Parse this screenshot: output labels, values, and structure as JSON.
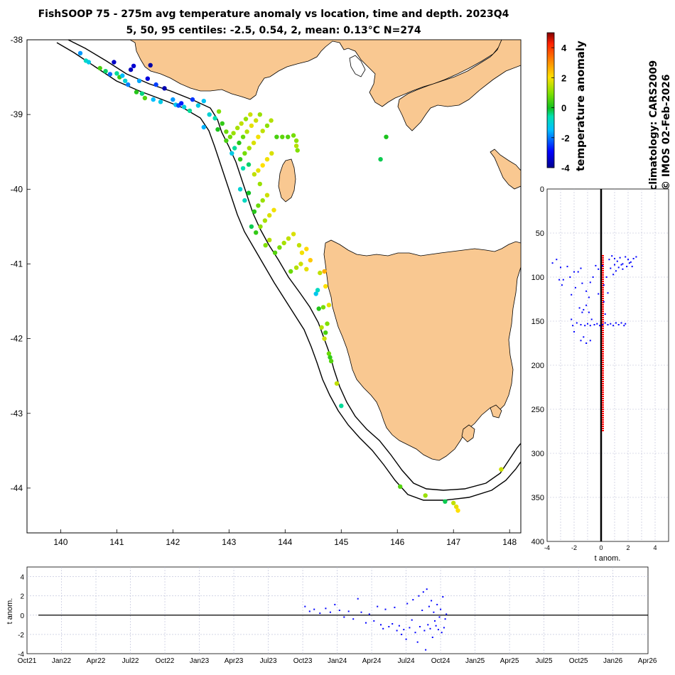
{
  "title_line1": "FishSOOP 75 - 275m avg temperature anomaly vs location, time and depth. 2023Q4",
  "title_line2": "5, 50, 95 centiles: -2.5, 0.54, 2, mean: 0.13°C N=274",
  "side_text_1": "climatology: CARS2009",
  "side_text_2": "© IMOS 02-Feb-2026",
  "colors": {
    "land": "#f9c891",
    "points_blue": "#0000ff",
    "red_line": "#ff0000",
    "grid": "#b8bcd6"
  },
  "chart_data": [
    {
      "type": "scatter",
      "name": "map",
      "xlabel": "longitude",
      "ylabel": "latitude",
      "xlim": [
        139.4,
        148.2
      ],
      "ylim": [
        -44.6,
        -38
      ],
      "xticks": [
        "140",
        "141",
        "142",
        "143",
        "144",
        "145",
        "146",
        "147",
        "148"
      ],
      "yticks": [
        "-38",
        "-39",
        "-40",
        "-41",
        "-42",
        "-43",
        "-44"
      ],
      "colorbar": {
        "label": "temperature anomaly",
        "range": [
          -4,
          5
        ],
        "ticks": [
          "-4",
          "-2",
          "0",
          "2",
          "4"
        ]
      },
      "points": [
        [
          140.35,
          -38.18,
          -1.8
        ],
        [
          140.45,
          -38.28,
          -0.8
        ],
        [
          140.5,
          -38.3,
          -1.2
        ],
        [
          140.7,
          -38.38,
          0.5
        ],
        [
          140.8,
          -38.42,
          -0.3
        ],
        [
          140.88,
          -38.46,
          -2.2
        ],
        [
          140.95,
          -38.3,
          -3.5
        ],
        [
          141.0,
          -38.45,
          -0.5
        ],
        [
          141.05,
          -38.5,
          0.3
        ],
        [
          141.1,
          -38.48,
          -1.5
        ],
        [
          141.15,
          -38.55,
          -1.0
        ],
        [
          141.2,
          -38.6,
          -2.0
        ],
        [
          141.25,
          -38.4,
          -3.6
        ],
        [
          141.3,
          -38.35,
          -3.4
        ],
        [
          141.35,
          -38.7,
          0.2
        ],
        [
          141.4,
          -38.55,
          -1.7
        ],
        [
          141.45,
          -38.72,
          -0.4
        ],
        [
          141.5,
          -38.78,
          0.6
        ],
        [
          141.55,
          -38.52,
          -3.3
        ],
        [
          141.6,
          -38.34,
          -3.8
        ],
        [
          141.65,
          -38.8,
          -1.5
        ],
        [
          141.7,
          -38.6,
          -2.5
        ],
        [
          141.78,
          -38.83,
          -1.2
        ],
        [
          141.85,
          -38.65,
          -3.7
        ],
        [
          142.0,
          -38.8,
          -1.8
        ],
        [
          142.05,
          -38.87,
          -1.3
        ],
        [
          142.1,
          -38.88,
          -2.4
        ],
        [
          142.15,
          -38.85,
          -2.8
        ],
        [
          142.2,
          -38.9,
          -1.1
        ],
        [
          142.3,
          -38.95,
          -0.5
        ],
        [
          142.35,
          -38.8,
          -2.6
        ],
        [
          142.45,
          -38.88,
          -1.2
        ],
        [
          142.55,
          -38.82,
          -1.4
        ],
        [
          142.55,
          -39.17,
          -1.6
        ],
        [
          142.65,
          -39.0,
          -1.0
        ],
        [
          142.75,
          -39.05,
          -0.6
        ],
        [
          142.8,
          -39.2,
          0.1
        ],
        [
          142.88,
          -39.12,
          0.3
        ],
        [
          142.95,
          -39.23,
          0.8
        ],
        [
          142.82,
          -38.96,
          1.0
        ],
        [
          142.95,
          -39.35,
          0.5
        ],
        [
          143.02,
          -39.3,
          0.9
        ],
        [
          143.08,
          -39.25,
          1.2
        ],
        [
          143.15,
          -39.18,
          1.3
        ],
        [
          143.22,
          -39.12,
          1.5
        ],
        [
          143.3,
          -39.06,
          1.2
        ],
        [
          143.38,
          -39.0,
          1.6
        ],
        [
          143.05,
          -39.52,
          -1.2
        ],
        [
          143.1,
          -39.45,
          -0.5
        ],
        [
          143.18,
          -39.38,
          0.2
        ],
        [
          143.25,
          -39.3,
          0.8
        ],
        [
          143.32,
          -39.23,
          1.4
        ],
        [
          143.4,
          -39.15,
          1.8
        ],
        [
          143.48,
          -39.08,
          1.6
        ],
        [
          143.55,
          -39.0,
          1.2
        ],
        [
          143.2,
          -39.6,
          0.3
        ],
        [
          143.28,
          -39.52,
          0.9
        ],
        [
          143.36,
          -39.45,
          1.3
        ],
        [
          143.44,
          -39.38,
          1.7
        ],
        [
          143.52,
          -39.3,
          1.9
        ],
        [
          143.6,
          -39.22,
          1.5
        ],
        [
          143.68,
          -39.15,
          1.1
        ],
        [
          143.75,
          -39.08,
          1.4
        ],
        [
          143.85,
          -39.3,
          0.5
        ],
        [
          143.95,
          -39.3,
          0.7
        ],
        [
          144.05,
          -39.3,
          0.6
        ],
        [
          144.15,
          -39.28,
          0.9
        ],
        [
          144.2,
          -39.35,
          1.1
        ],
        [
          144.2,
          -39.42,
          1.4
        ],
        [
          144.22,
          -39.48,
          1.0
        ],
        [
          143.25,
          -39.72,
          -0.6
        ],
        [
          143.35,
          -39.67,
          -0.3
        ],
        [
          143.45,
          -39.8,
          1.5
        ],
        [
          143.52,
          -39.75,
          1.8
        ],
        [
          143.6,
          -39.68,
          2.0
        ],
        [
          143.68,
          -39.6,
          1.9
        ],
        [
          143.76,
          -39.52,
          1.7
        ],
        [
          143.55,
          -39.93,
          1.2
        ],
        [
          143.2,
          -40.0,
          -1.0
        ],
        [
          143.35,
          -40.05,
          0.0
        ],
        [
          143.45,
          -40.3,
          0.2
        ],
        [
          143.52,
          -40.22,
          0.8
        ],
        [
          143.6,
          -40.15,
          1.2
        ],
        [
          143.68,
          -40.08,
          1.6
        ],
        [
          143.28,
          -40.15,
          -0.8
        ],
        [
          143.4,
          -40.5,
          -0.2
        ],
        [
          143.48,
          -40.58,
          0.3
        ],
        [
          143.56,
          -40.5,
          1.1
        ],
        [
          143.64,
          -40.42,
          1.3
        ],
        [
          143.72,
          -40.35,
          1.7
        ],
        [
          143.8,
          -40.28,
          1.9
        ],
        [
          143.65,
          -40.75,
          1.0
        ],
        [
          143.72,
          -40.68,
          1.4
        ],
        [
          143.82,
          -40.85,
          0.6
        ],
        [
          143.9,
          -40.78,
          0.9
        ],
        [
          143.98,
          -40.72,
          1.3
        ],
        [
          144.06,
          -40.66,
          1.5
        ],
        [
          144.15,
          -40.6,
          1.7
        ],
        [
          144.25,
          -40.75,
          1.5
        ],
        [
          144.3,
          -40.85,
          1.9
        ],
        [
          144.38,
          -40.8,
          2.1
        ],
        [
          144.1,
          -41.1,
          0.8
        ],
        [
          144.2,
          -41.05,
          1.4
        ],
        [
          144.28,
          -41.0,
          1.6
        ],
        [
          144.38,
          -41.07,
          1.8
        ],
        [
          144.45,
          -40.95,
          2.3
        ],
        [
          144.55,
          -41.4,
          -1.3
        ],
        [
          144.58,
          -41.35,
          -0.8
        ],
        [
          144.62,
          -41.12,
          1.5
        ],
        [
          144.7,
          -41.1,
          2.6
        ],
        [
          144.72,
          -41.3,
          2.0
        ],
        [
          144.6,
          -41.6,
          0.2
        ],
        [
          144.68,
          -41.58,
          0.9
        ],
        [
          144.78,
          -41.55,
          1.8
        ],
        [
          144.65,
          -41.85,
          1.4
        ],
        [
          144.75,
          -41.8,
          1.0
        ],
        [
          144.72,
          -41.92,
          0.5
        ],
        [
          144.7,
          -42.0,
          1.6
        ],
        [
          144.78,
          -42.2,
          0.8
        ],
        [
          144.8,
          -42.25,
          0.3
        ],
        [
          144.82,
          -42.3,
          0.6
        ],
        [
          144.92,
          -42.6,
          1.5
        ],
        [
          145.0,
          -42.9,
          -0.5
        ],
        [
          146.05,
          -43.98,
          0.6
        ],
        [
          146.5,
          -44.1,
          1.2
        ],
        [
          146.85,
          -44.18,
          -0.2
        ],
        [
          147.0,
          -44.2,
          1.5
        ],
        [
          147.05,
          -44.25,
          1.8
        ],
        [
          147.08,
          -44.3,
          2.0
        ],
        [
          147.85,
          -43.75,
          1.6
        ],
        [
          145.7,
          -39.6,
          -0.2
        ],
        [
          145.8,
          -39.3,
          0.1
        ]
      ]
    },
    {
      "type": "scatter",
      "name": "profile",
      "xlabel": "t anom.",
      "xlim": [
        -4,
        5
      ],
      "ylim": [
        0,
        400
      ],
      "xticks": [
        "-4",
        "-2",
        "0",
        "2",
        "4"
      ],
      "yticks": [
        "0",
        "50",
        "100",
        "150",
        "200",
        "250",
        "300",
        "350",
        "400"
      ],
      "mean_line": {
        "x": 0.13,
        "y_range": [
          75,
          275
        ]
      },
      "points": [
        [
          -3.6,
          84
        ],
        [
          -3.3,
          80
        ],
        [
          -3.0,
          89
        ],
        [
          -3.1,
          103
        ],
        [
          -2.9,
          109
        ],
        [
          -2.8,
          103
        ],
        [
          -2.5,
          88
        ],
        [
          -2.3,
          100
        ],
        [
          -2.0,
          94
        ],
        [
          -2.2,
          120
        ],
        [
          -1.9,
          112
        ],
        [
          -1.7,
          94
        ],
        [
          -1.5,
          90
        ],
        [
          -1.4,
          107
        ],
        [
          -1.1,
          116
        ],
        [
          -0.8,
          106
        ],
        [
          -0.6,
          100
        ],
        [
          -0.9,
          123
        ],
        [
          -0.4,
          87
        ],
        [
          -0.2,
          119
        ],
        [
          -1.6,
          135
        ],
        [
          -1.4,
          140
        ],
        [
          -1.3,
          137
        ],
        [
          -1.1,
          132
        ],
        [
          -0.9,
          140
        ],
        [
          -0.7,
          148
        ],
        [
          -2.2,
          148
        ],
        [
          -2.1,
          155
        ],
        [
          -2.0,
          162
        ],
        [
          -1.8,
          152
        ],
        [
          -1.5,
          154
        ],
        [
          -1.2,
          155
        ],
        [
          -1.0,
          153
        ],
        [
          -0.8,
          155
        ],
        [
          -0.5,
          154
        ],
        [
          -0.3,
          153
        ],
        [
          -0.1,
          155
        ],
        [
          0.1,
          154
        ],
        [
          0.3,
          152
        ],
        [
          0.5,
          154
        ],
        [
          0.7,
          153
        ],
        [
          0.9,
          155
        ],
        [
          1.1,
          152
        ],
        [
          1.3,
          154
        ],
        [
          1.5,
          152
        ],
        [
          1.7,
          155
        ],
        [
          1.8,
          153
        ],
        [
          -1.5,
          172
        ],
        [
          -1.3,
          168
        ],
        [
          -1.1,
          175
        ],
        [
          -0.8,
          172
        ],
        [
          0.6,
          80
        ],
        [
          0.8,
          76
        ],
        [
          1.0,
          79
        ],
        [
          1.2,
          82
        ],
        [
          1.4,
          78
        ],
        [
          1.6,
          85
        ],
        [
          1.8,
          77
        ],
        [
          2.0,
          80
        ],
        [
          2.2,
          83
        ],
        [
          2.4,
          79
        ],
        [
          2.6,
          77
        ],
        [
          1.0,
          86
        ],
        [
          1.3,
          89
        ],
        [
          1.6,
          91
        ],
        [
          1.9,
          88
        ],
        [
          2.1,
          84
        ],
        [
          0.7,
          90
        ],
        [
          1.1,
          93
        ],
        [
          1.5,
          86
        ],
        [
          2.3,
          88
        ],
        [
          0.9,
          97
        ],
        [
          0.4,
          100
        ],
        [
          0.2,
          109
        ],
        [
          0.5,
          118
        ],
        [
          0.2,
          128
        ],
        [
          0.1,
          87
        ],
        [
          -0.2,
          91
        ],
        [
          0.3,
          142
        ]
      ]
    },
    {
      "type": "scatter",
      "name": "timeseries",
      "ylabel": "t anom.",
      "ylim": [
        -4,
        5
      ],
      "yticks": [
        "-4",
        "-2",
        "0",
        "2",
        "4"
      ],
      "xticks": [
        "Oct21",
        "Jan22",
        "Apr22",
        "Jul22",
        "Oct22",
        "Jan23",
        "Apr23",
        "Jul23",
        "Oct23",
        "Jan24",
        "Apr24",
        "Jul24",
        "Oct24",
        "Jan25",
        "Apr25",
        "Jul25",
        "Oct25",
        "Jan26",
        "Apr26"
      ],
      "points": [
        [
          24.2,
          0.9
        ],
        [
          24.6,
          0.4
        ],
        [
          25.0,
          0.6
        ],
        [
          25.5,
          0.2
        ],
        [
          26.0,
          0.7
        ],
        [
          26.4,
          0.3
        ],
        [
          26.8,
          1.1
        ],
        [
          27.2,
          0.5
        ],
        [
          27.6,
          -0.2
        ],
        [
          28.0,
          0.4
        ],
        [
          28.4,
          -0.4
        ],
        [
          28.8,
          1.7
        ],
        [
          29.1,
          0.3
        ],
        [
          29.5,
          -0.8
        ],
        [
          29.8,
          0.1
        ],
        [
          30.2,
          -0.6
        ],
        [
          30.5,
          0.9
        ],
        [
          30.8,
          -1.0
        ],
        [
          31.0,
          -1.4
        ],
        [
          31.2,
          0.6
        ],
        [
          31.5,
          -1.2
        ],
        [
          31.8,
          -0.9
        ],
        [
          32.0,
          0.8
        ],
        [
          32.2,
          -1.6
        ],
        [
          32.4,
          -1.1
        ],
        [
          32.6,
          -2.0
        ],
        [
          32.8,
          -1.5
        ],
        [
          33.0,
          -2.5
        ],
        [
          33.1,
          1.2
        ],
        [
          33.3,
          -1.3
        ],
        [
          33.5,
          -0.5
        ],
        [
          33.6,
          1.6
        ],
        [
          33.8,
          -1.8
        ],
        [
          34.0,
          -2.8
        ],
        [
          34.1,
          2.0
        ],
        [
          34.2,
          -1.2
        ],
        [
          34.4,
          0.5
        ],
        [
          34.5,
          2.4
        ],
        [
          34.6,
          -1.6
        ],
        [
          34.7,
          -3.6
        ],
        [
          34.8,
          2.7
        ],
        [
          34.9,
          -1.0
        ],
        [
          35.0,
          0.9
        ],
        [
          35.1,
          -1.4
        ],
        [
          35.2,
          1.5
        ],
        [
          35.3,
          -2.3
        ],
        [
          35.4,
          0.3
        ],
        [
          35.5,
          -0.6
        ],
        [
          35.6,
          -1.1
        ],
        [
          35.7,
          1.1
        ],
        [
          35.8,
          -1.5
        ],
        [
          35.9,
          -0.2
        ],
        [
          36.0,
          0.6
        ],
        [
          36.1,
          -1.8
        ],
        [
          36.2,
          1.9
        ],
        [
          36.3,
          -1.3
        ],
        [
          36.4,
          -0.4
        ],
        [
          36.5,
          0.1
        ]
      ]
    }
  ]
}
